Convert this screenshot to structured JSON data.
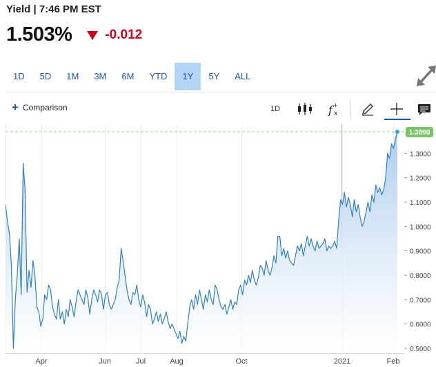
{
  "header": {
    "title": "Yield | 7:46 PM EST"
  },
  "quote": {
    "price": "1.503%",
    "change": "-0.012",
    "change_color": "#d0021b"
  },
  "ranges": [
    {
      "label": "1D",
      "active": false
    },
    {
      "label": "5D",
      "active": false
    },
    {
      "label": "1M",
      "active": false
    },
    {
      "label": "3M",
      "active": false
    },
    {
      "label": "6M",
      "active": false
    },
    {
      "label": "YTD",
      "active": false
    },
    {
      "label": "1Y",
      "active": true
    },
    {
      "label": "5Y",
      "active": false
    },
    {
      "label": "ALL",
      "active": false
    }
  ],
  "toolbar": {
    "comparison_label": "Comparison",
    "interval_label": "1D",
    "icons": [
      "candlestick-icon",
      "fx-icon",
      "pencil-icon",
      "crosshair-icon",
      "news-icon"
    ]
  },
  "colors": {
    "line": "#2f7fc4",
    "fill_top": "#a7c9ec",
    "last_price_badge": "#7cc46a",
    "last_price_line": "#8fd48a"
  },
  "chart_data": {
    "type": "area",
    "title": "",
    "xlabel": "",
    "ylabel": "",
    "x_ticks": [
      "Apr",
      "Jun",
      "Jul",
      "Aug",
      "Oct",
      "2021",
      "Feb"
    ],
    "y_ticks": [
      "1.3000",
      "1.2000",
      "1.1000",
      "1.0000",
      "0.9000",
      "0.8000",
      "0.7000",
      "0.6000",
      "0.5000"
    ],
    "y_tick_values": [
      1.3,
      1.2,
      1.1,
      1.0,
      0.9,
      0.8,
      0.7,
      0.6,
      0.5
    ],
    "ylim": [
      0.48,
      1.42
    ],
    "last_value_label": "1.3890",
    "last_value": 1.389,
    "grid": "vertical",
    "values": [
      1.09,
      1.02,
      0.97,
      0.84,
      0.5,
      0.7,
      0.8,
      0.95,
      0.72,
      1.26,
      1.15,
      0.73,
      0.82,
      0.75,
      0.86,
      0.8,
      0.67,
      0.65,
      0.59,
      0.62,
      0.72,
      0.7,
      0.76,
      0.74,
      0.67,
      0.64,
      0.62,
      0.7,
      0.62,
      0.65,
      0.6,
      0.66,
      0.63,
      0.7,
      0.67,
      0.63,
      0.69,
      0.74,
      0.72,
      0.7,
      0.68,
      0.74,
      0.71,
      0.64,
      0.7,
      0.74,
      0.72,
      0.69,
      0.74,
      0.72,
      0.66,
      0.72,
      0.73,
      0.68,
      0.66,
      0.68,
      0.7,
      0.75,
      0.78,
      0.91,
      0.86,
      0.8,
      0.74,
      0.7,
      0.68,
      0.73,
      0.72,
      0.76,
      0.7,
      0.67,
      0.72,
      0.69,
      0.63,
      0.68,
      0.66,
      0.6,
      0.62,
      0.65,
      0.61,
      0.64,
      0.6,
      0.62,
      0.65,
      0.61,
      0.58,
      0.6,
      0.58,
      0.56,
      0.54,
      0.57,
      0.52,
      0.55,
      0.53,
      0.6,
      0.67,
      0.7,
      0.66,
      0.72,
      0.68,
      0.74,
      0.7,
      0.66,
      0.72,
      0.69,
      0.74,
      0.7,
      0.68,
      0.76,
      0.74,
      0.7,
      0.67,
      0.66,
      0.68,
      0.64,
      0.67,
      0.7,
      0.66,
      0.69,
      0.68,
      0.74,
      0.76,
      0.72,
      0.78,
      0.76,
      0.8,
      0.77,
      0.82,
      0.78,
      0.76,
      0.79,
      0.84,
      0.83,
      0.8,
      0.86,
      0.82,
      0.8,
      0.83,
      0.88,
      0.85,
      0.96,
      0.96,
      0.88,
      0.91,
      0.87,
      0.9,
      0.86,
      0.85,
      0.84,
      0.88,
      0.92,
      0.9,
      0.93,
      0.88,
      0.92,
      0.96,
      0.92,
      0.95,
      0.92,
      0.9,
      0.94,
      0.91,
      0.92,
      0.93,
      0.95,
      0.9,
      0.92,
      0.91,
      0.92,
      0.94,
      0.91,
      1.02,
      1.11,
      1.09,
      1.14,
      1.08,
      1.12,
      1.09,
      1.04,
      1.11,
      1.06,
      1.09,
      1.04,
      1.0,
      1.02,
      1.06,
      1.1,
      1.06,
      1.13,
      1.1,
      1.17,
      1.14,
      1.16,
      1.13,
      1.15,
      1.2,
      1.3,
      1.28,
      1.34,
      1.32,
      1.36,
      1.389
    ]
  }
}
